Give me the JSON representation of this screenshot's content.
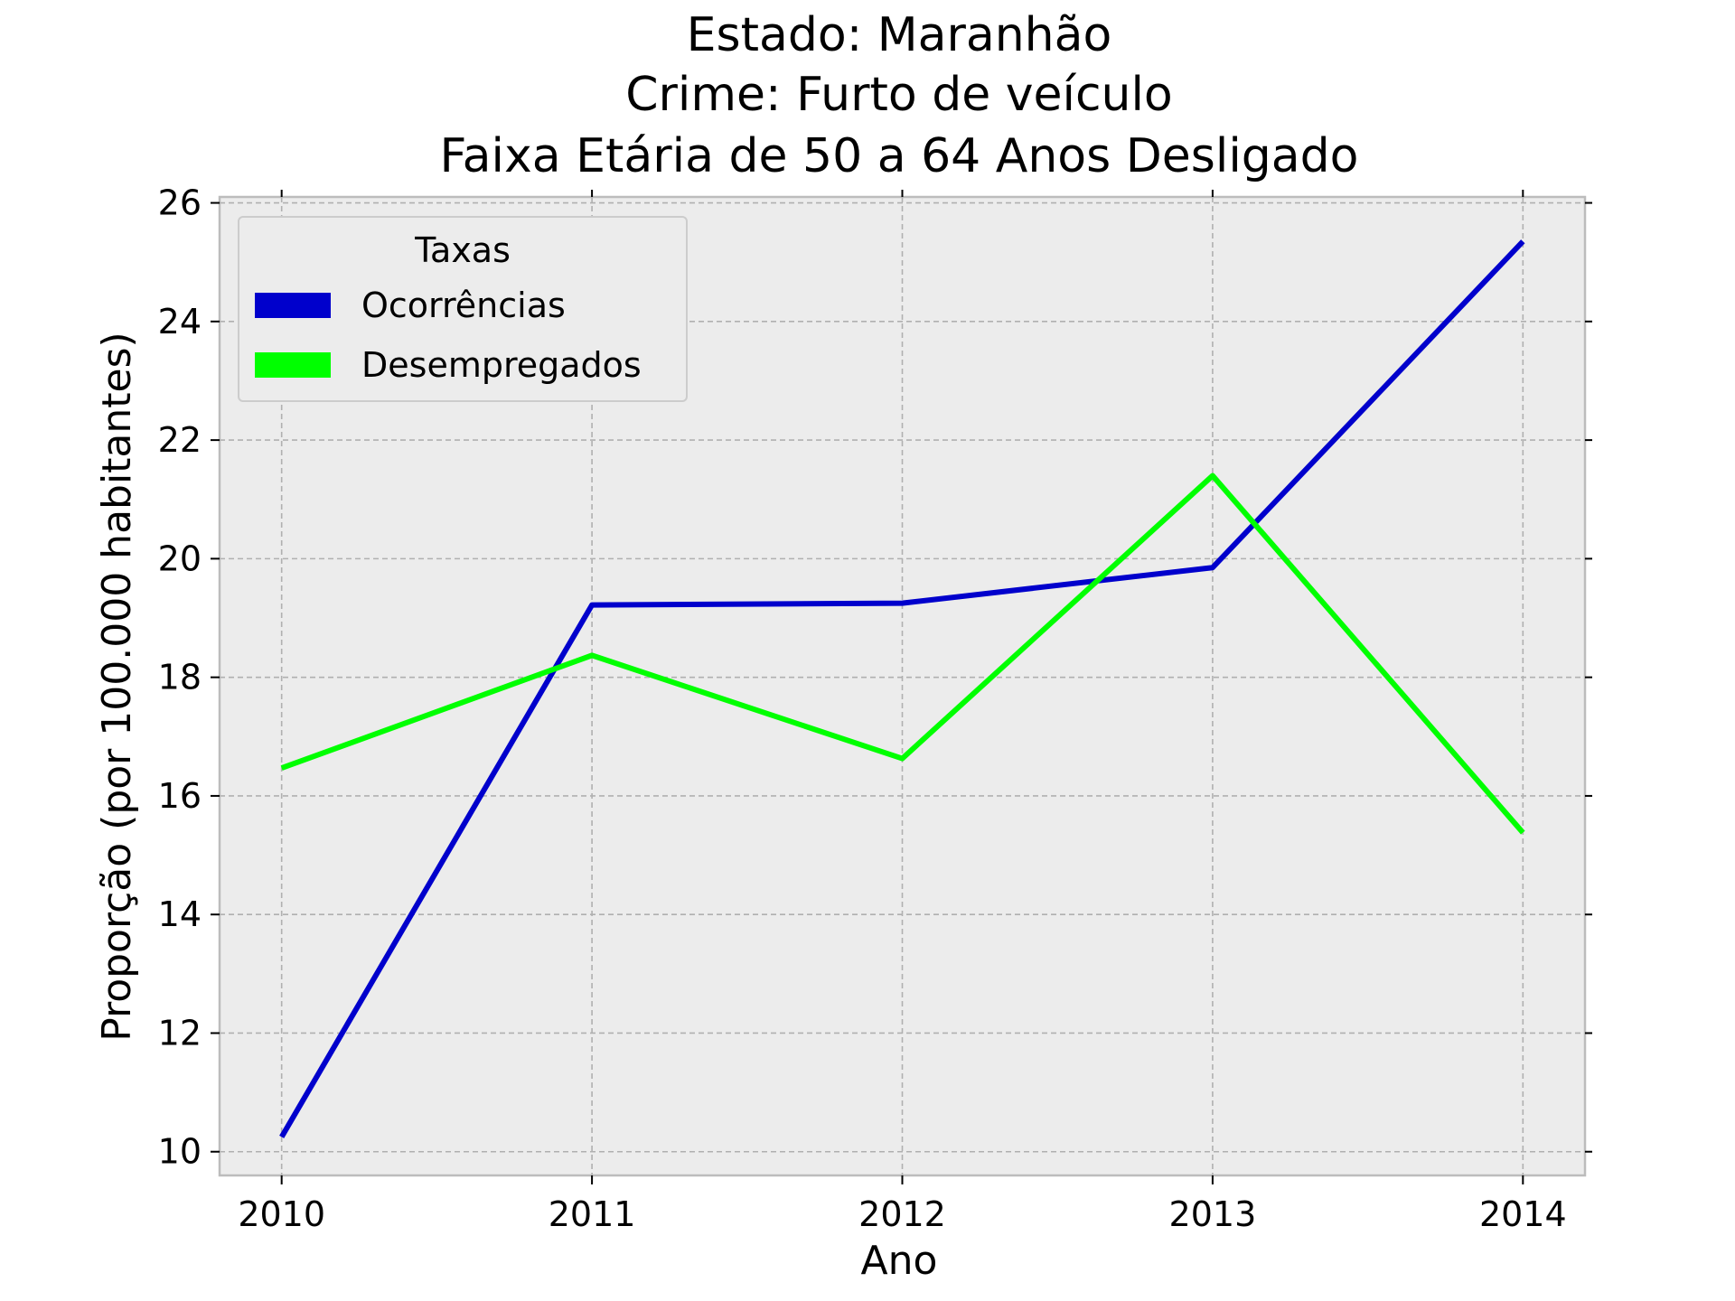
{
  "chart_data": {
    "type": "line",
    "title_lines": [
      "Estado: Maranhão",
      "Crime: Furto de veículo",
      "Faixa Etária de 50 a 64 Anos   Desligado"
    ],
    "xlabel": "Ano",
    "ylabel": "Proporção (por 100.000 habitantes)",
    "x": [
      2010,
      2011,
      2012,
      2013,
      2014
    ],
    "x_tick_labels": [
      "2010",
      "2011",
      "2012",
      "2013",
      "2014"
    ],
    "y_ticks": [
      10,
      12,
      14,
      16,
      18,
      20,
      22,
      24,
      26
    ],
    "y_tick_labels": [
      "10",
      "12",
      "14",
      "16",
      "18",
      "20",
      "22",
      "24",
      "26"
    ],
    "xlim": [
      2009.8,
      2014.2
    ],
    "ylim": [
      9.6,
      26.1
    ],
    "grid": true,
    "legend": {
      "title": "Taxas",
      "placement": "top-left"
    },
    "series": [
      {
        "name": "Ocorrências",
        "color": "#0000cc",
        "values": [
          10.25,
          19.22,
          19.25,
          19.85,
          25.35
        ]
      },
      {
        "name": "Desempregados",
        "color": "#00ff00",
        "values": [
          16.47,
          18.37,
          16.63,
          21.4,
          15.38
        ]
      }
    ]
  }
}
